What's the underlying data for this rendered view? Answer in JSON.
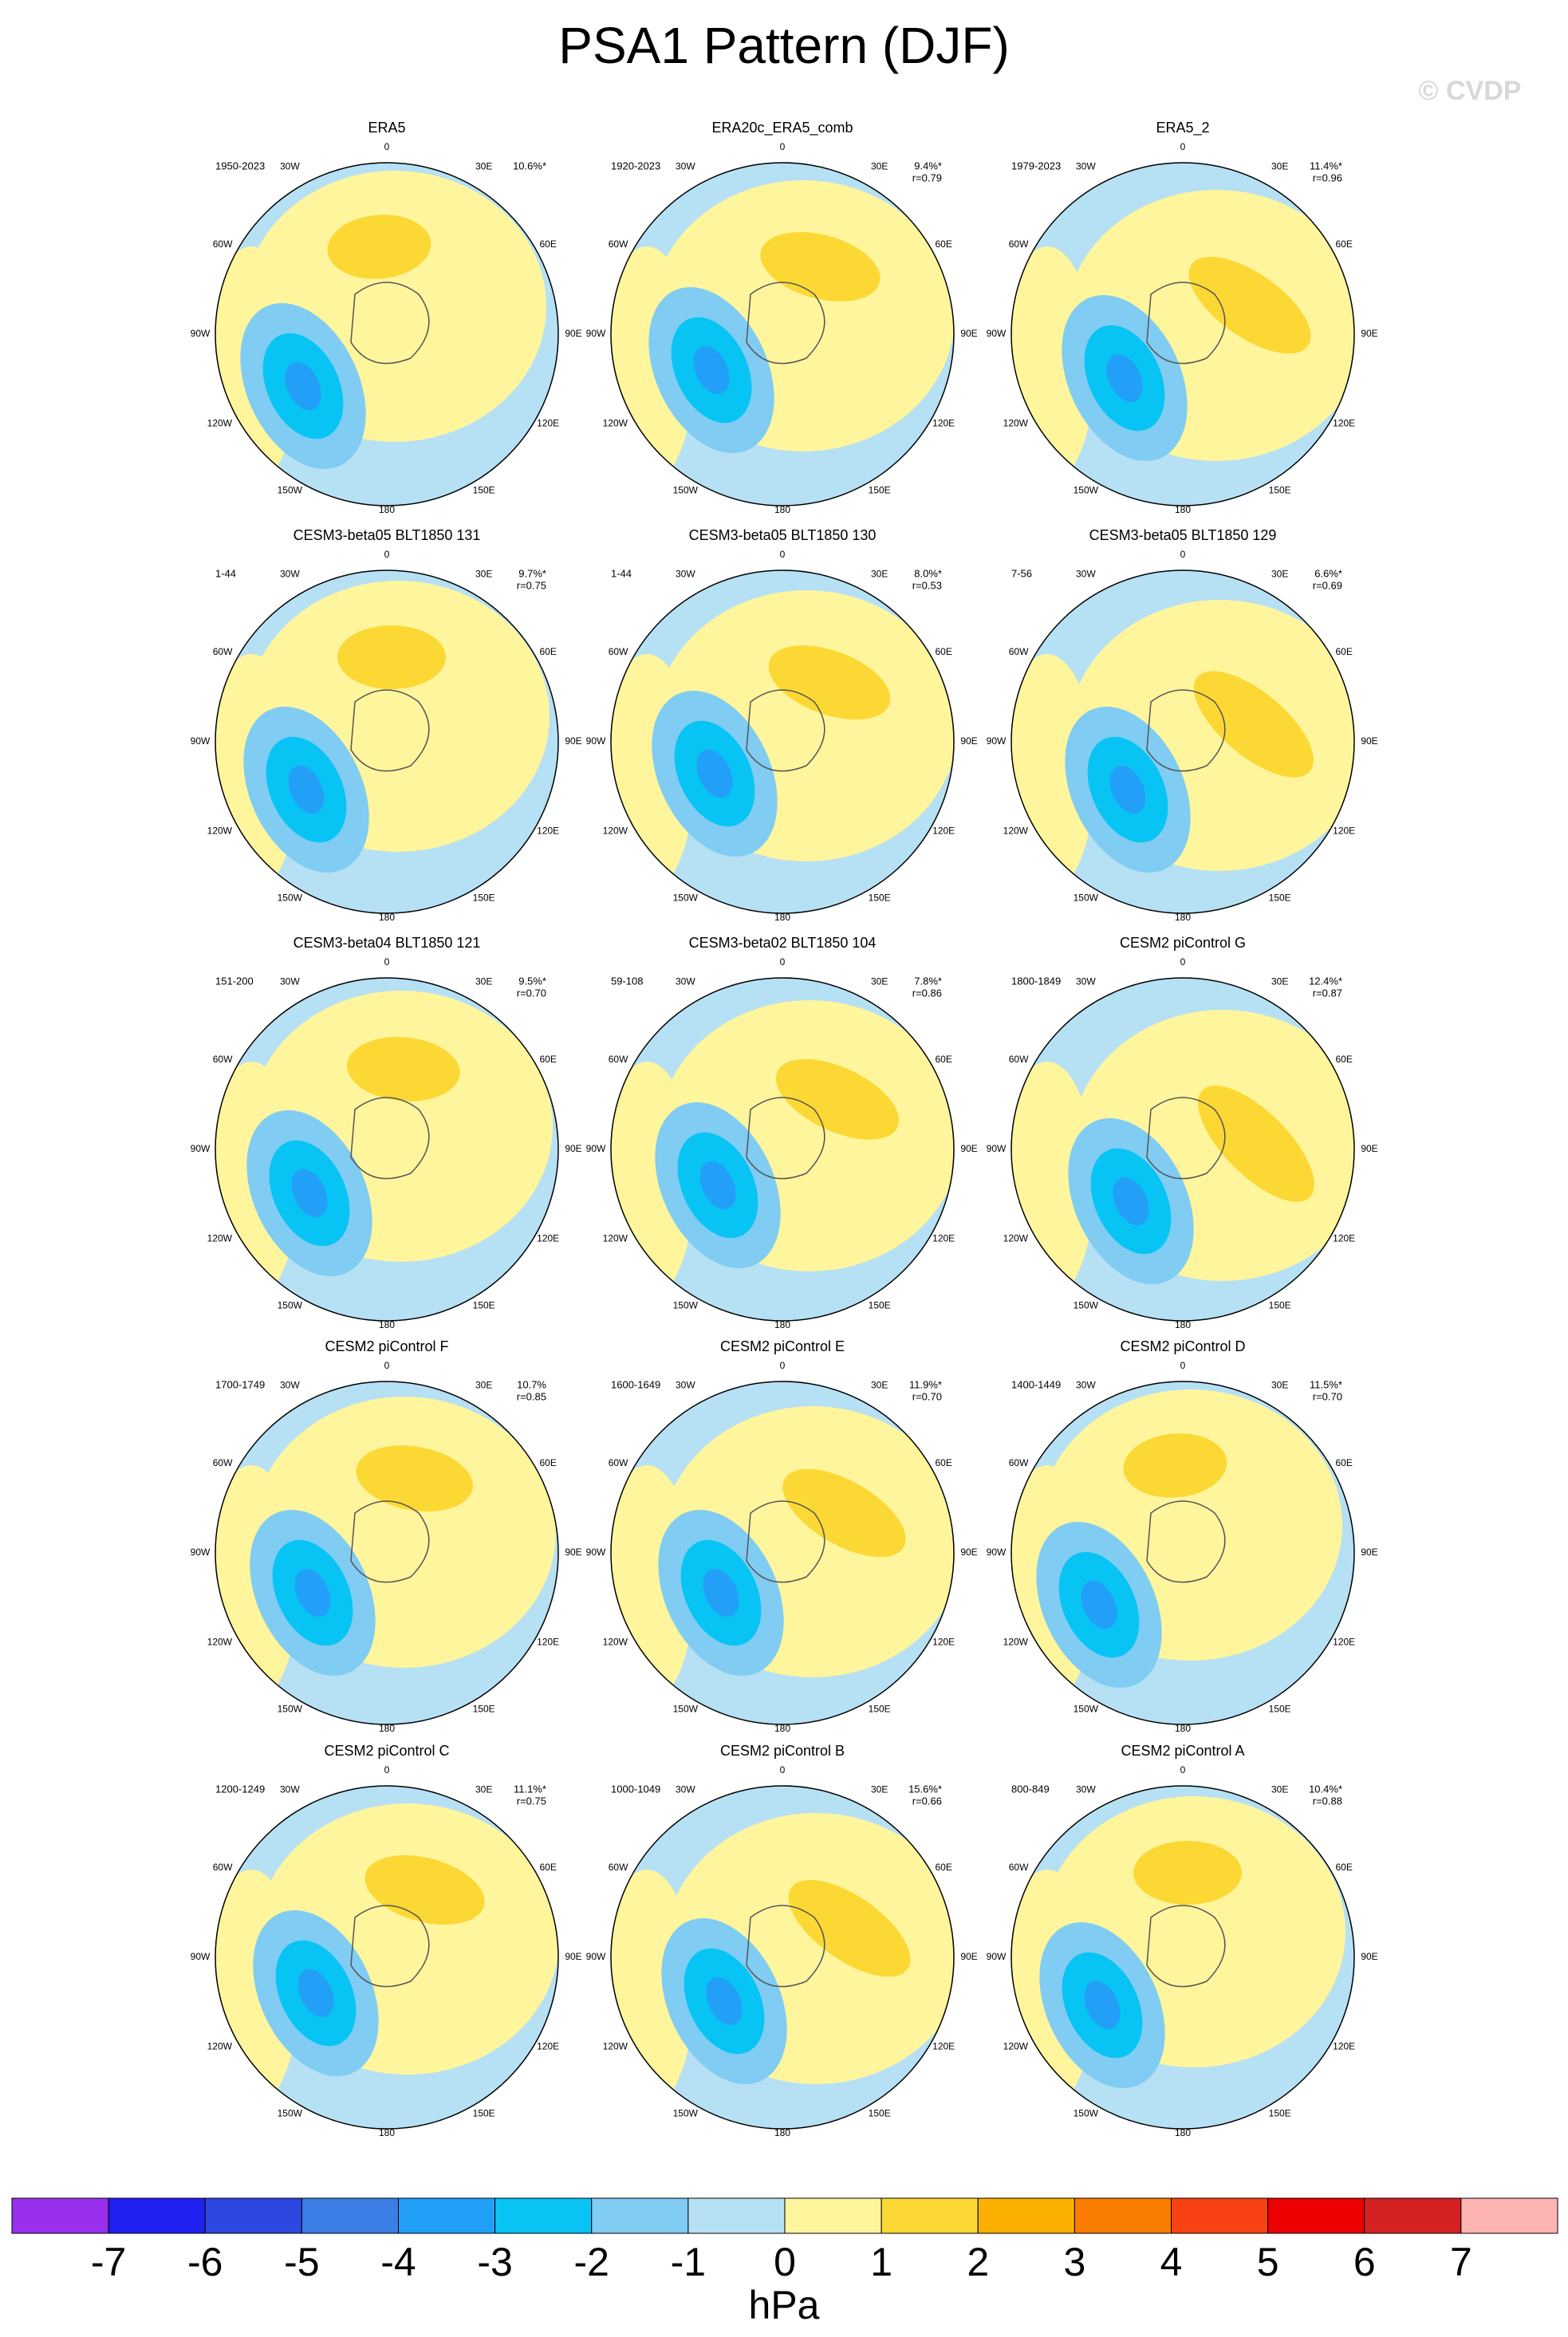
{
  "title": "PSA1 Pattern (DJF)",
  "watermark": "© CVDP",
  "lon_labels": [
    "0",
    "30E",
    "60E",
    "90E",
    "120E",
    "150E",
    "180",
    "150W",
    "120W",
    "90W",
    "60W",
    "30W"
  ],
  "panels": [
    {
      "title": "ERA5",
      "period": "1950-2023",
      "pct": "10.6%*"
    },
    {
      "title": "ERA20c_ERA5_comb",
      "period": "1920-2023",
      "pct": "9.4%*",
      "r": "r=0.79"
    },
    {
      "title": "ERA5_2",
      "period": "1979-2023",
      "pct": "11.4%*",
      "r": "r=0.96"
    },
    {
      "title": "CESM3-beta05 BLT1850 131",
      "period": "1-44",
      "pct": "9.7%*",
      "r": "r=0.75"
    },
    {
      "title": "CESM3-beta05 BLT1850 130",
      "period": "1-44",
      "pct": "8.0%*",
      "r": "r=0.53"
    },
    {
      "title": "CESM3-beta05 BLT1850 129",
      "period": "7-56",
      "pct": "6.6%*",
      "r": "r=0.69"
    },
    {
      "title": "CESM3-beta04 BLT1850 121",
      "period": "151-200",
      "pct": "9.5%*",
      "r": "r=0.70"
    },
    {
      "title": "CESM3-beta02 BLT1850 104",
      "period": "59-108",
      "pct": "7.8%*",
      "r": "r=0.86"
    },
    {
      "title": "CESM2 piControl G",
      "period": "1800-1849",
      "pct": "12.4%*",
      "r": "r=0.87"
    },
    {
      "title": "CESM2 piControl F",
      "period": "1700-1749",
      "pct": "10.7%",
      "r": "r=0.85"
    },
    {
      "title": "CESM2 piControl E",
      "period": "1600-1649",
      "pct": "11.9%*",
      "r": "r=0.70"
    },
    {
      "title": "CESM2 piControl D",
      "period": "1400-1449",
      "pct": "11.5%*",
      "r": "r=0.70"
    },
    {
      "title": "CESM2 piControl C",
      "period": "1200-1249",
      "pct": "11.1%*",
      "r": "r=0.75"
    },
    {
      "title": "CESM2 piControl B",
      "period": "1000-1049",
      "pct": "15.6%*",
      "r": "r=0.66"
    },
    {
      "title": "CESM2 piControl A",
      "period": "800-849",
      "pct": "10.4%*",
      "r": "r=0.88"
    }
  ],
  "colorbar": {
    "colors": [
      "#9a30ee",
      "#2020f0",
      "#2c48e0",
      "#3a7ee6",
      "#22a0f8",
      "#08c4f4",
      "#80ccf2",
      "#b6e0f4",
      "#fff59d",
      "#fcd834",
      "#fbb000",
      "#fa7c00",
      "#f84214",
      "#ec0000",
      "#d42222",
      "#ffb4b4"
    ],
    "ticks": [
      -7,
      -6,
      -5,
      -4,
      -3,
      -2,
      -1,
      0,
      1,
      2,
      3,
      4,
      5,
      6,
      7
    ],
    "label": "hPa"
  }
}
